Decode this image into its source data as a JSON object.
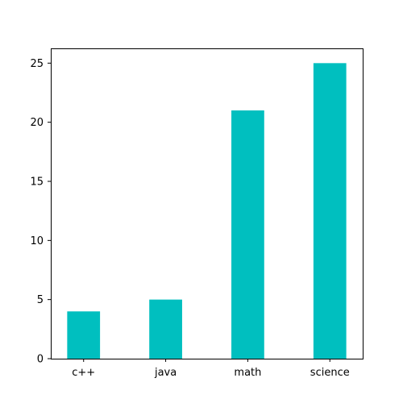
{
  "chart_data": {
    "type": "bar",
    "categories": [
      "c++",
      "java",
      "math",
      "science"
    ],
    "values": [
      4,
      5,
      21,
      25
    ],
    "title": "",
    "xlabel": "",
    "ylabel": "",
    "ylim": [
      0,
      26.25
    ],
    "yticks": [
      0,
      5,
      10,
      15,
      20,
      25
    ],
    "bar_color": "#00bfbf",
    "grid": false,
    "legend": "none"
  }
}
